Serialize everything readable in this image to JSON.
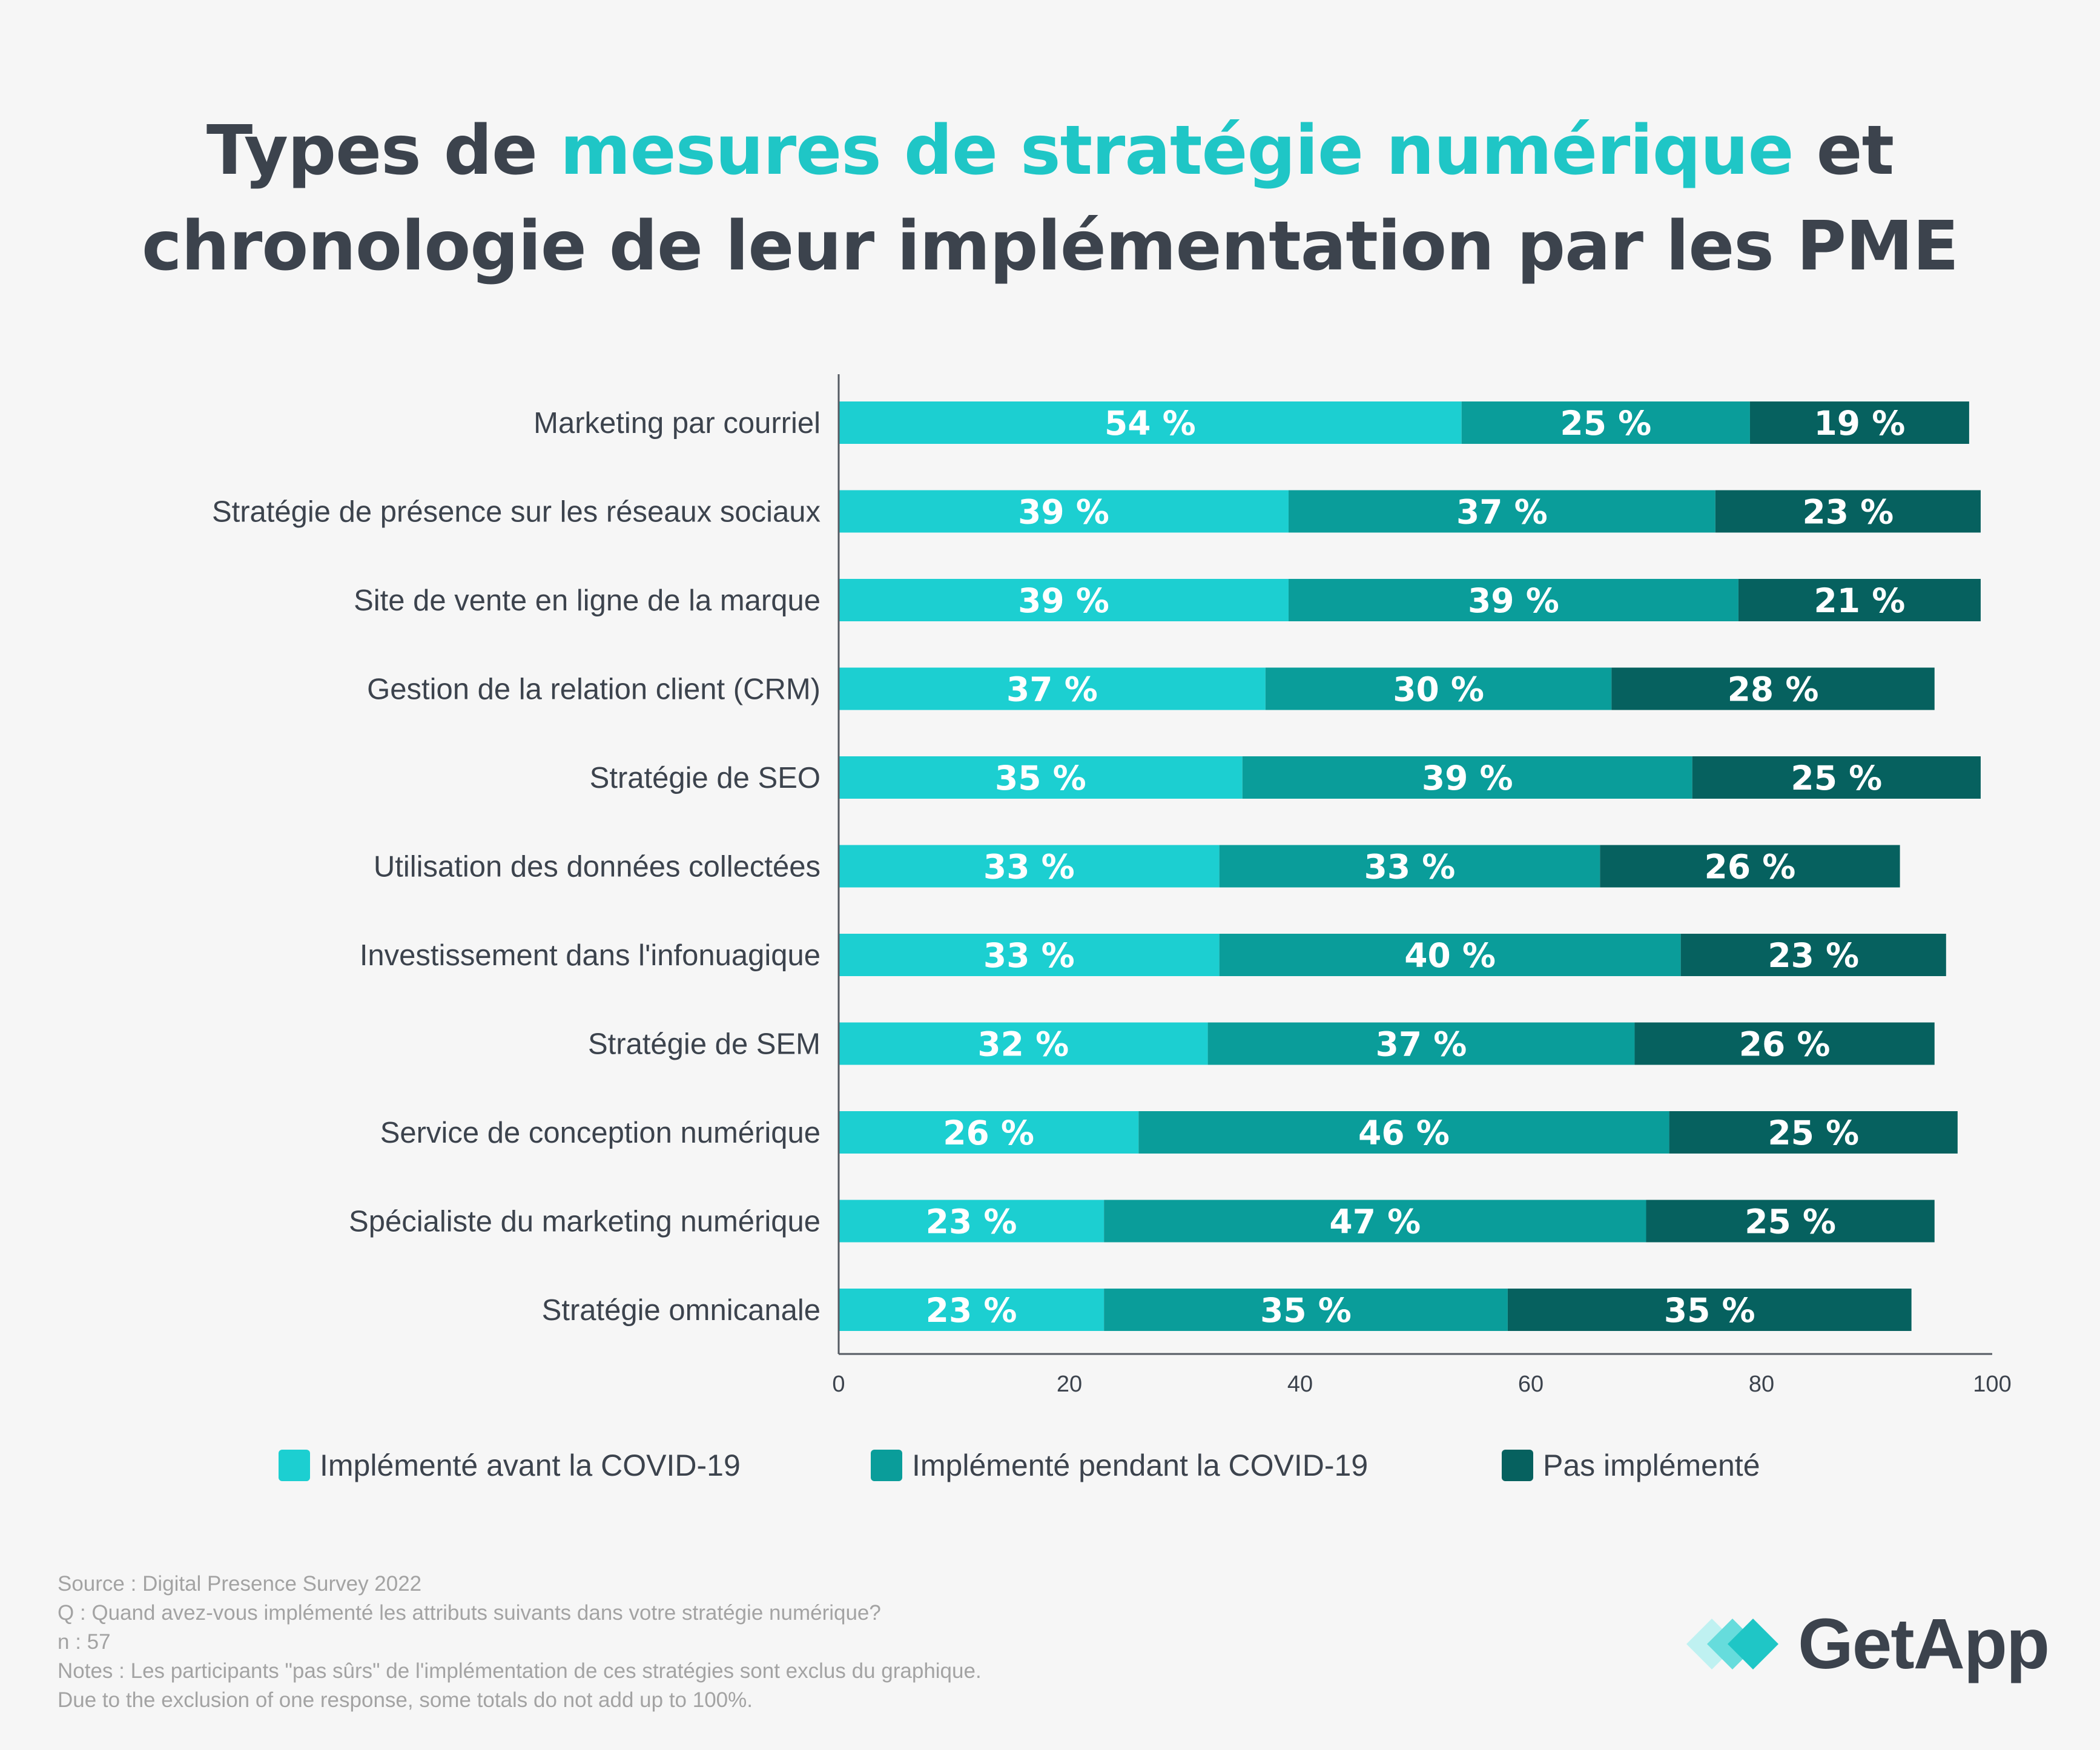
{
  "title": {
    "part1": "Types de ",
    "highlight": "mesures de stratégie numérique",
    "part2": " et",
    "line2": "chronologie de leur implémentation par les PME"
  },
  "colors": {
    "before": "#1ccfd1",
    "during": "#0a9d9a",
    "not": "#06615f",
    "highlight": "#1fc6c6",
    "text": "#3c434d",
    "muted": "#a3a3a3"
  },
  "chart_data": {
    "type": "bar",
    "orientation": "horizontal",
    "stacked": true,
    "title": "Types de mesures de stratégie numérique et chronologie de leur implémentation par les PME",
    "xlabel": "",
    "ylabel": "",
    "xlim": [
      0,
      100
    ],
    "xticks": [
      "0",
      "20",
      "40",
      "60",
      "80",
      "100"
    ],
    "grid": false,
    "legend_position": "bottom",
    "categories": [
      "Marketing par courriel",
      "Stratégie de présence sur les réseaux sociaux",
      "Site de vente en ligne de la marque",
      "Gestion de la relation client (CRM)",
      "Stratégie de SEO",
      "Utilisation des données collectées",
      "Investissement dans l'infonuagique",
      "Stratégie de SEM",
      "Service de conception numérique",
      "Spécialiste du marketing numérique",
      "Stratégie omnicanale"
    ],
    "series": [
      {
        "name": "Implémenté avant la COVID-19",
        "color": "#1ccfd1",
        "values": [
          54,
          39,
          39,
          37,
          35,
          33,
          33,
          32,
          26,
          23,
          23
        ],
        "labels": [
          "54 %",
          "39 %",
          "39 %",
          "37 %",
          "35 %",
          "33 %",
          "33 %",
          "32 %",
          "26 %",
          "23 %",
          "23 %"
        ]
      },
      {
        "name": "Implémenté pendant la COVID-19",
        "color": "#0a9d9a",
        "values": [
          25,
          37,
          39,
          30,
          39,
          33,
          40,
          37,
          46,
          47,
          35
        ],
        "labels": [
          "25 %",
          "37 %",
          "39 %",
          "30 %",
          "39 %",
          "33 %",
          "40 %",
          "37 %",
          "46 %",
          "47 %",
          "35 %"
        ]
      },
      {
        "name": "Pas implémenté",
        "color": "#06615f",
        "values": [
          19,
          23,
          21,
          28,
          25,
          26,
          23,
          26,
          25,
          25,
          35
        ],
        "labels": [
          "19 %",
          "23 %",
          "21 %",
          "28 %",
          "25 %",
          "26 %",
          "23 %",
          "26 %",
          "25 %",
          "25 %",
          "35 %"
        ]
      }
    ]
  },
  "footnotes": [
    "Source : Digital Presence Survey 2022",
    "Q : Quand avez-vous implémenté les attributs suivants dans votre stratégie numérique?",
    "n : 57",
    "Notes : Les participants \"pas sûrs\" de l'implémentation de ces stratégies sont exclus du graphique.",
    "Due to the exclusion of one response, some totals do not add up to 100%."
  ],
  "brand": {
    "name": "GetApp",
    "icon": "getapp-chevrons-icon"
  }
}
